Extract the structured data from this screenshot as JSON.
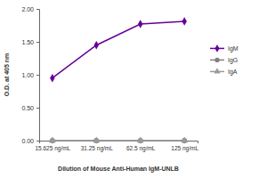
{
  "chart_data": {
    "type": "line",
    "x_label": "Dilution of Mouse Anti-Human IgM-UNLB",
    "y_label": "O.D. at 405 nm",
    "categories": [
      "15.625 ng/mL",
      "31.25 ng/mL",
      "62.5 ng/mL",
      "125 ng/mL"
    ],
    "series": [
      {
        "name": "IgM",
        "color": "#660099",
        "marker": "diamond",
        "values": [
          0.95,
          1.45,
          1.77,
          1.81
        ]
      },
      {
        "name": "IgG",
        "color": "#808080",
        "marker": "circle",
        "values": [
          0.0,
          0.0,
          0.0,
          0.0
        ]
      },
      {
        "name": "IgA",
        "color": "#9a9a9a",
        "marker": "triangle",
        "values": [
          0.0,
          0.0,
          0.0,
          0.0
        ]
      }
    ],
    "ylim": [
      0,
      2
    ],
    "yticks": [
      {
        "value": 0,
        "label": "0.00"
      },
      {
        "value": 0.5,
        "label": "0.50"
      },
      {
        "value": 1,
        "label": "1.00"
      },
      {
        "value": 1.5,
        "label": "1.50"
      },
      {
        "value": 2,
        "label": "2.00"
      }
    ],
    "grid": false,
    "legend": "right"
  }
}
